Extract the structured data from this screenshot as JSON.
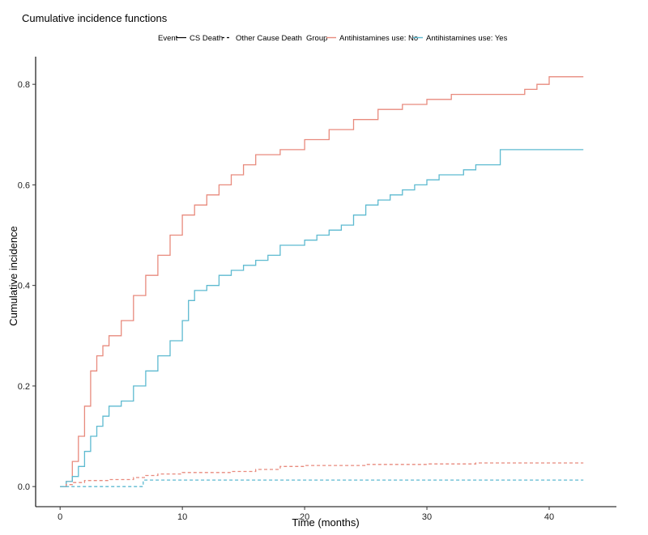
{
  "chart_data": {
    "type": "line",
    "title": "Cumulative incidence functions",
    "xlabel": "Time (months)",
    "ylabel": "Cumulative incidence",
    "xlim": [
      -2,
      45.5
    ],
    "ylim": [
      -0.04,
      0.855
    ],
    "x_ticks": [
      0,
      10,
      20,
      30,
      40
    ],
    "y_ticks": [
      0.0,
      0.2,
      0.4,
      0.6,
      0.8
    ],
    "x_tick_labels": [
      "0",
      "10",
      "20",
      "30",
      "40"
    ],
    "y_tick_labels": [
      "0.0",
      "0.2",
      "0.4",
      "0.6",
      "0.8"
    ],
    "grid": false,
    "legend": {
      "placement": "top",
      "event_title": "Event",
      "event_entries": [
        {
          "label": "CS Death",
          "line_style": "solid"
        },
        {
          "label": "Other Cause Death",
          "line_style": "dashed"
        }
      ],
      "group_title": "Group",
      "group_entries": [
        {
          "label": "Antihistamines use: No",
          "color": "#F8766D"
        },
        {
          "label": "Antihistamines use: Yes",
          "color": "#00BFC4"
        }
      ]
    },
    "series": [
      {
        "event": "CS Death",
        "group": "Antihistamines use: No",
        "color": "#E88A7D",
        "line_style": "solid",
        "x": [
          0,
          0.5,
          1,
          1.5,
          2,
          2.5,
          3,
          3.5,
          4,
          5,
          6,
          7,
          8,
          9,
          10,
          11,
          12,
          13,
          14,
          15,
          16,
          18,
          20,
          22,
          24,
          26,
          28,
          30,
          32,
          34,
          36,
          38,
          39,
          40,
          42.8
        ],
        "y": [
          0,
          0.01,
          0.05,
          0.1,
          0.16,
          0.23,
          0.26,
          0.28,
          0.3,
          0.33,
          0.38,
          0.42,
          0.46,
          0.5,
          0.54,
          0.56,
          0.58,
          0.6,
          0.62,
          0.64,
          0.66,
          0.67,
          0.69,
          0.71,
          0.73,
          0.75,
          0.76,
          0.77,
          0.78,
          0.78,
          0.78,
          0.79,
          0.8,
          0.815,
          0.815
        ]
      },
      {
        "event": "CS Death",
        "group": "Antihistamines use: Yes",
        "color": "#5DBAD0",
        "line_style": "solid",
        "x": [
          0,
          0.5,
          1,
          1.5,
          2,
          2.5,
          3,
          3.5,
          4,
          5,
          6,
          7,
          8,
          9,
          10,
          10.5,
          11,
          12,
          13,
          14,
          15,
          16,
          17,
          18,
          20,
          21,
          22,
          23,
          24,
          25,
          26,
          27,
          28,
          29,
          30,
          31,
          32,
          33,
          34,
          35,
          36,
          38,
          40,
          42.8
        ],
        "y": [
          0,
          0.01,
          0.02,
          0.04,
          0.07,
          0.1,
          0.12,
          0.14,
          0.16,
          0.17,
          0.2,
          0.23,
          0.26,
          0.29,
          0.33,
          0.37,
          0.39,
          0.4,
          0.42,
          0.43,
          0.44,
          0.45,
          0.46,
          0.48,
          0.49,
          0.5,
          0.51,
          0.52,
          0.54,
          0.56,
          0.57,
          0.58,
          0.59,
          0.6,
          0.61,
          0.62,
          0.62,
          0.63,
          0.64,
          0.64,
          0.67,
          0.67,
          0.67,
          0.67
        ]
      },
      {
        "event": "Other Cause Death",
        "group": "Antihistamines use: No",
        "color": "#E88A7D",
        "line_style": "dashed",
        "x": [
          0,
          0.5,
          1,
          2,
          4,
          6,
          7,
          8,
          10,
          14,
          16,
          18,
          20,
          25,
          30,
          33,
          34,
          42.8
        ],
        "y": [
          0,
          0.004,
          0.008,
          0.012,
          0.014,
          0.018,
          0.022,
          0.025,
          0.028,
          0.03,
          0.034,
          0.04,
          0.042,
          0.044,
          0.045,
          0.045,
          0.047,
          0.047
        ]
      },
      {
        "event": "Other Cause Death",
        "group": "Antihistamines use: Yes",
        "color": "#5DBAD0",
        "line_style": "dashed",
        "x": [
          0,
          6.8,
          42.8
        ],
        "y": [
          0,
          0.013,
          0.013
        ]
      }
    ]
  }
}
